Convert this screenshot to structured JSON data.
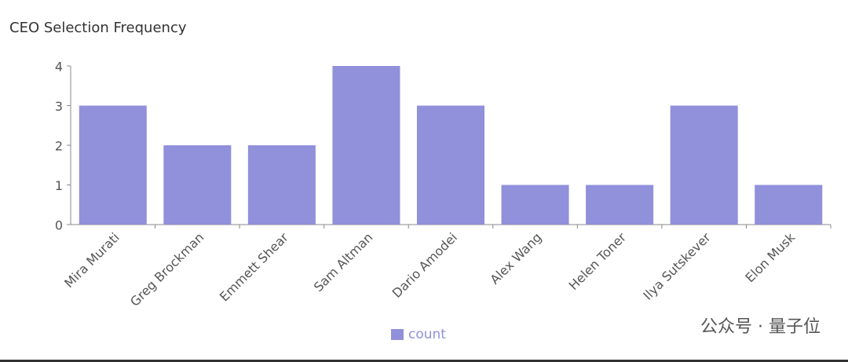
{
  "chart_data": {
    "type": "bar",
    "title": "CEO Selection Frequency",
    "categories": [
      "Mira Murati",
      "Greg Brockman",
      "Emmett Shear",
      "Sam Altman",
      "Dario Amodei",
      "Alex Wang",
      "Helen Toner",
      "Ilya Sutskever",
      "Elon Musk"
    ],
    "series": [
      {
        "name": "count",
        "color": "#9190db",
        "values": [
          3,
          2,
          2,
          4,
          3,
          1,
          1,
          3,
          1
        ]
      }
    ],
    "ylim": [
      0,
      4
    ],
    "yticks": [
      0,
      1,
      2,
      3,
      4
    ],
    "grid": false,
    "legend": "bottom",
    "watermark": "公众号 · 量子位"
  }
}
